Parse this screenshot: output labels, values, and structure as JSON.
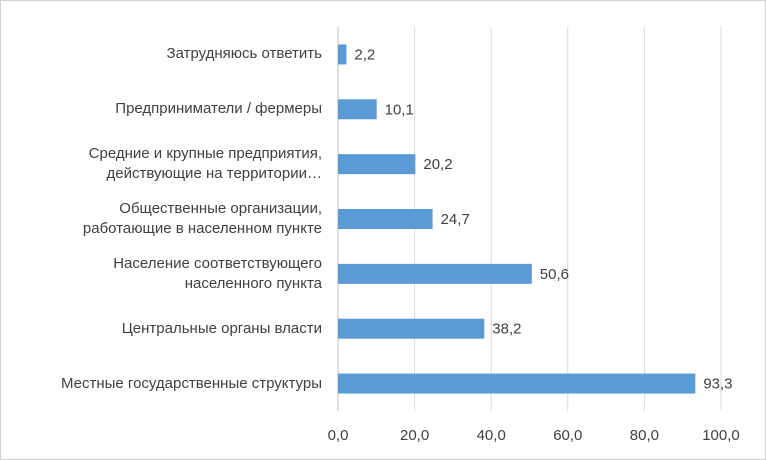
{
  "chart_data": {
    "type": "bar",
    "orientation": "horizontal",
    "categories": [
      "Затрудняюсь ответить",
      "Предприниматели / фермеры",
      "Средние и крупные предприятия,\nдействующие на территории…",
      "Общественные организации,\nработающие в населенном пункте",
      "Население соответствующего\nнаселенного пункта",
      "Центральные органы власти",
      "Местные государственные структуры"
    ],
    "values": [
      2.2,
      10.1,
      20.2,
      24.7,
      50.6,
      38.2,
      93.3
    ],
    "value_labels": [
      "2,2",
      "10,1",
      "20,2",
      "24,7",
      "50,6",
      "38,2",
      "93,3"
    ],
    "color": "#5b9bd5",
    "xlim": [
      0,
      100
    ],
    "xticks": [
      {
        "value": 0,
        "label": "0,0"
      },
      {
        "value": 20,
        "label": "20,0"
      },
      {
        "value": 40,
        "label": "40,0"
      },
      {
        "value": 60,
        "label": "60,0"
      },
      {
        "value": 80,
        "label": "80,0"
      },
      {
        "value": 100,
        "label": "100,0"
      }
    ],
    "grid": true
  }
}
